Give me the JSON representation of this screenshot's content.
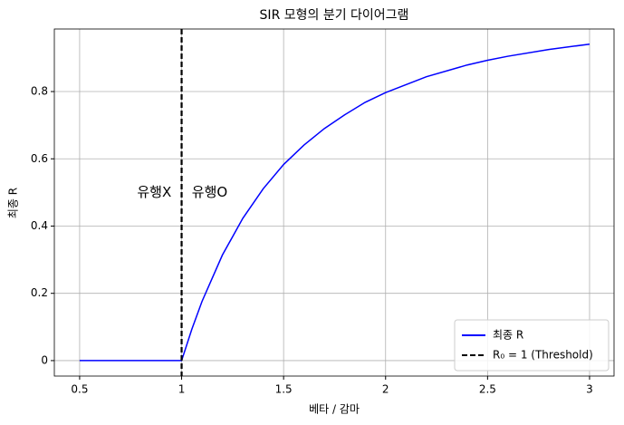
{
  "chart_data": {
    "type": "line",
    "title": "SIR 모형의 분기 다이어그램",
    "xlabel": "베타 / 감마",
    "ylabel": "최종 R",
    "xlim": [
      0.376,
      3.12
    ],
    "ylim": [
      -0.046,
      0.986
    ],
    "xticks": [
      0.5,
      1.0,
      1.5,
      2.0,
      2.5,
      3.0
    ],
    "yticks": [
      0.0,
      0.2,
      0.4,
      0.6,
      0.8
    ],
    "grid": true,
    "legend": "lower right",
    "series": [
      {
        "name": "최종 R",
        "color": "#0000ff",
        "x": [
          0.5,
          0.6,
          0.7,
          0.8,
          0.9,
          1.0,
          1.05,
          1.1,
          1.2,
          1.3,
          1.4,
          1.5,
          1.6,
          1.7,
          1.8,
          1.9,
          2.0,
          2.2,
          2.4,
          2.5,
          2.6,
          2.8,
          3.0
        ],
        "values": [
          0,
          0,
          0,
          0,
          0,
          0,
          0.093,
          0.176,
          0.314,
          0.423,
          0.511,
          0.583,
          0.641,
          0.69,
          0.731,
          0.768,
          0.797,
          0.844,
          0.879,
          0.893,
          0.905,
          0.925,
          0.941
        ]
      }
    ],
    "vlines": [
      {
        "name": "R₀ = 1 (Threshold)",
        "x": 1.0,
        "color": "#000000"
      }
    ],
    "annotations": [
      {
        "text": "유행X",
        "x": 0.95,
        "y": 0.5
      },
      {
        "text": "유행O",
        "x": 1.05,
        "y": 0.5
      }
    ]
  }
}
